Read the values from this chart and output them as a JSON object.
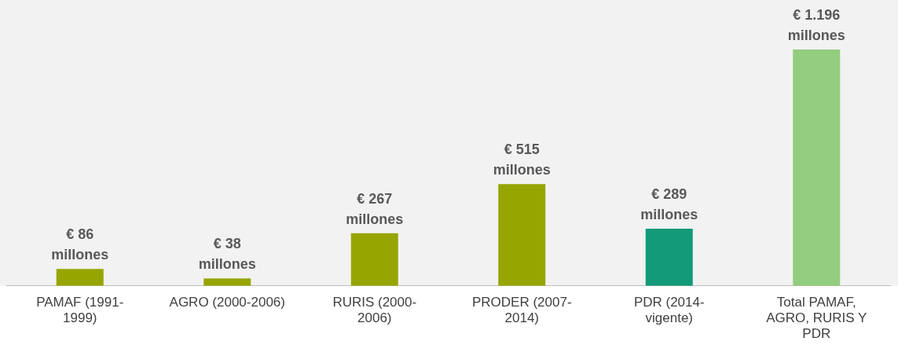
{
  "chart_data": {
    "type": "bar",
    "categories": [
      "PAMAF (1991-1999)",
      "AGRO (2000-2006)",
      "RURIS (2000-2006)",
      "PRODER (2007-2014)",
      "PDR (2014-vigente)",
      "Total PAMAF, AGRO, RURIS Y PDR"
    ],
    "values": [
      86,
      38,
      267,
      515,
      289,
      1196
    ],
    "colors": [
      "#97a500",
      "#97a500",
      "#97a500",
      "#97a500",
      "#139a78",
      "#93cd7f"
    ],
    "value_labels": [
      "€ 86 millones",
      "€ 38 millones",
      "€ 267 millones",
      "€ 515 millones",
      "€ 289 millones",
      "€ 1.196 millones"
    ],
    "grid": false,
    "legend": false
  }
}
